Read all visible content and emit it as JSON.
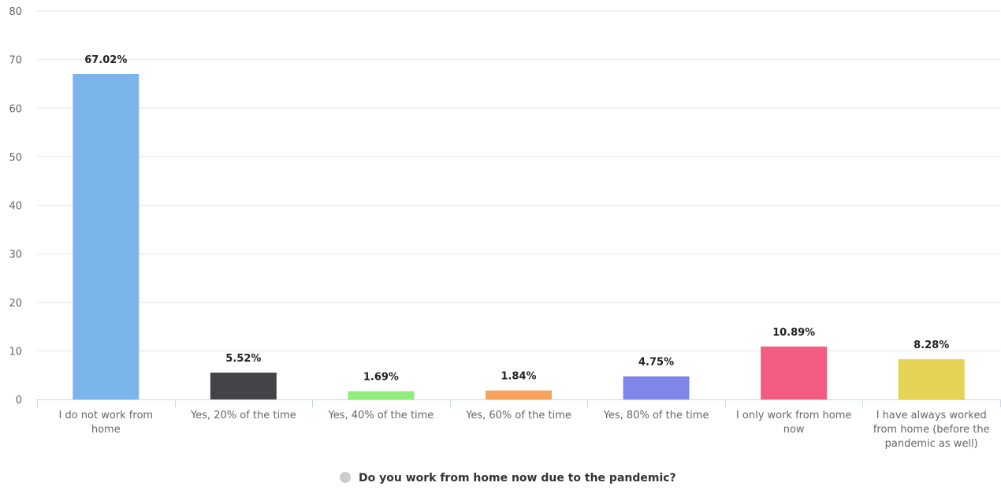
{
  "chart_data": {
    "type": "bar",
    "title": "",
    "xlabel": "",
    "ylabel": "",
    "ylim": [
      0,
      80
    ],
    "yticks": [
      0,
      10,
      20,
      30,
      40,
      50,
      60,
      70,
      80
    ],
    "grid": true,
    "legend_position": "bottom-center",
    "categories": [
      "I do not work from home",
      "Yes, 20% of the time",
      "Yes, 40% of the time",
      "Yes, 60% of the time",
      "Yes, 80% of the time",
      "I only work from home now",
      "I have always worked from home (before the pandemic as well)"
    ],
    "category_lines": [
      [
        "I do not work from",
        "home"
      ],
      [
        "Yes, 20% of the time"
      ],
      [
        "Yes, 40% of the time"
      ],
      [
        "Yes, 60% of the time"
      ],
      [
        "Yes, 80% of the time"
      ],
      [
        "I only work from home",
        "now"
      ],
      [
        "I have always worked",
        "from home (before the",
        "pandemic as well)"
      ]
    ],
    "values": [
      67.02,
      5.52,
      1.69,
      1.84,
      4.75,
      10.89,
      8.28
    ],
    "data_labels": [
      "67.02%",
      "5.52%",
      "1.69%",
      "1.84%",
      "4.75%",
      "10.89%",
      "8.28%"
    ],
    "colors": [
      "#7cb5ec",
      "#434348",
      "#90ed7d",
      "#f7a35c",
      "#8085e9",
      "#f15c80",
      "#e4d354"
    ],
    "series": [
      {
        "name": "Do you work from home now due to the pandemic?",
        "legend_color": "#cccccc"
      }
    ]
  }
}
